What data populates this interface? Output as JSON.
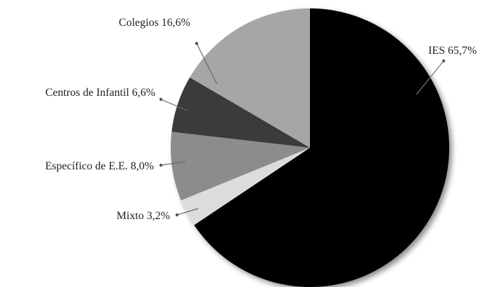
{
  "chart_data": {
    "type": "pie",
    "title": "",
    "slices": [
      {
        "name": "IES",
        "label": "IES  65,7%",
        "value": 65.7,
        "color": "#050505"
      },
      {
        "name": "Mixto",
        "label": "Mixto 3,2%",
        "value": 3.2,
        "color": "#dcdcdc"
      },
      {
        "name": "Específico de E.E.",
        "label": "Específico de E.E. 8,0%",
        "value": 8.0,
        "color": "#8c8c8c"
      },
      {
        "name": "Centros de Infantil",
        "label": "Centros de Infantil 6,6%",
        "value": 6.6,
        "color": "#3b3b3b"
      },
      {
        "name": "Colegios",
        "label": "Colegios 16,6%",
        "value": 16.6,
        "color": "#a6a6a6"
      }
    ],
    "start_angle_deg": 0,
    "direction": "clockwise",
    "shadow": true
  }
}
